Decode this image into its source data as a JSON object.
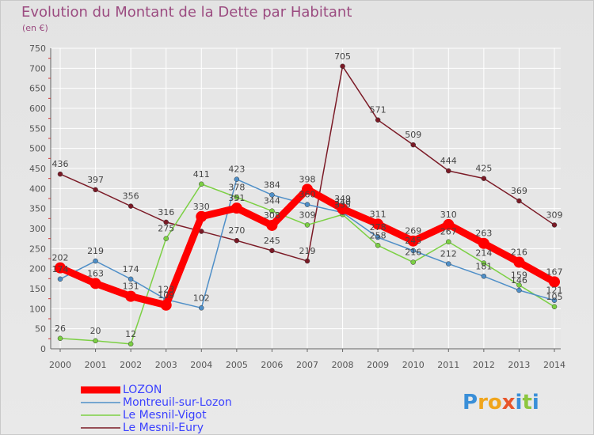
{
  "title": "Evolution du Montant de la Dette par Habitant",
  "subtitle": "(en €)",
  "logo_text": "Proxiti",
  "colors": {
    "title": "#9b4b80",
    "legend_text": "#3b41ff",
    "grid": "#ffffff",
    "background": "#e6e6e6"
  },
  "chart_data": {
    "type": "line",
    "title": "Evolution du Montant de la Dette par Habitant",
    "subtitle": "(en €)",
    "xlabel": "",
    "ylabel": "",
    "ylim": [
      0,
      750
    ],
    "yticks": [
      0,
      50,
      100,
      150,
      200,
      250,
      300,
      350,
      400,
      450,
      500,
      550,
      600,
      650,
      700,
      750
    ],
    "grid": true,
    "legend_position": "bottom-left",
    "x": [
      "2000",
      "2001",
      "2002",
      "2003",
      "2004",
      "2005",
      "2006",
      "2007",
      "2008",
      "2009",
      "2010",
      "2011",
      "2012",
      "2013",
      "2014"
    ],
    "series": [
      {
        "name": "Le Mesnil-Eury",
        "color": "#7b1a26",
        "values": [
          436,
          397,
          356,
          316,
          293,
          270,
          245,
          219,
          705,
          571,
          509,
          444,
          425,
          369,
          309
        ],
        "labels": [
          "436",
          "397",
          "356",
          "316",
          "",
          "270",
          "245",
          "219",
          "705",
          "571",
          "509",
          "444",
          "425",
          "369",
          "309"
        ]
      },
      {
        "name": "Le Mesnil-Vigot",
        "color": "#7cd044",
        "values": [
          26,
          20,
          12,
          275,
          411,
          378,
          344,
          309,
          335,
          258,
          216,
          267,
          214,
          159,
          105
        ],
        "labels": [
          "26",
          "20",
          "12",
          "275",
          "411",
          "378",
          "344",
          "309",
          "335",
          "258",
          "216",
          "267",
          "214",
          "159",
          "105"
        ]
      },
      {
        "name": "Montreuil-sur-Lozon",
        "color": "#4f8fc8",
        "values": [
          174,
          219,
          174,
          123,
          102,
          423,
          384,
          360,
          340,
          278,
          245,
          212,
          181,
          146,
          121
        ],
        "labels": [
          "174",
          "219",
          "174",
          "123",
          "102",
          "423",
          "384",
          "360",
          "340",
          "278",
          "245",
          "212",
          "181",
          "146",
          "121"
        ]
      },
      {
        "name": "LOZON",
        "color": "#ff0000",
        "values": [
          202,
          163,
          131,
          109,
          330,
          351,
          308,
          398,
          349,
          311,
          269,
          310,
          263,
          216,
          167
        ],
        "labels": [
          "202",
          "163",
          "131",
          "109",
          "330",
          "351",
          "308",
          "398",
          "349",
          "311",
          "269",
          "310",
          "263",
          "216",
          "167"
        ]
      }
    ],
    "legend": [
      "LOZON",
      "Montreuil-sur-Lozon",
      "Le Mesnil-Vigot",
      "Le Mesnil-Eury"
    ]
  }
}
